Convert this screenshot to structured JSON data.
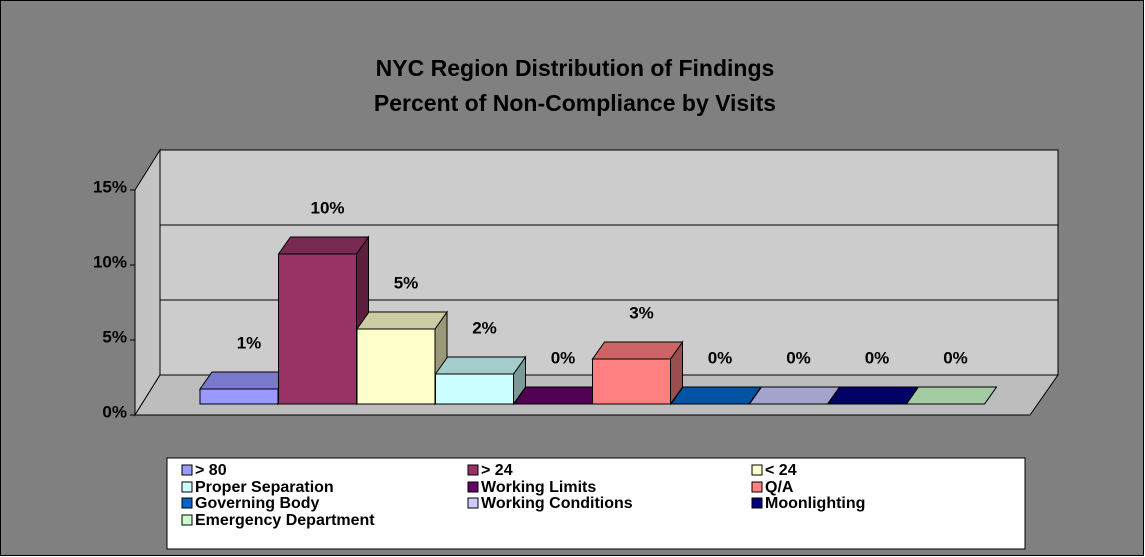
{
  "chart_data": {
    "type": "bar3d",
    "title": "NYC Region Distribution of Findings",
    "subtitle": "Percent of Non-Compliance by Visits",
    "categories": [
      "> 80",
      "> 24",
      "< 24",
      "Proper Separation",
      "Working Limits",
      "Q/A",
      "Governing Body",
      "Working Conditions",
      "Moonlighting",
      "Emergency Department"
    ],
    "values": [
      1,
      10,
      5,
      2,
      0,
      3,
      0,
      0,
      0,
      0
    ],
    "value_labels": [
      "1%",
      "10%",
      "5%",
      "2%",
      "0%",
      "3%",
      "0%",
      "0%",
      "0%",
      "0%"
    ],
    "colors": [
      "#9999ff",
      "#993366",
      "#ffffcc",
      "#ccffff",
      "#660066",
      "#ff8080",
      "#0066cc",
      "#ccccff",
      "#000080",
      "#ccffcc"
    ],
    "ylim": [
      0,
      15
    ],
    "yticks": [
      {
        "value": 0,
        "label": "0%"
      },
      {
        "value": 5,
        "label": "5%"
      },
      {
        "value": 10,
        "label": "10%"
      },
      {
        "value": 15,
        "label": "15%"
      }
    ],
    "grid": true,
    "legend": "bottom"
  }
}
